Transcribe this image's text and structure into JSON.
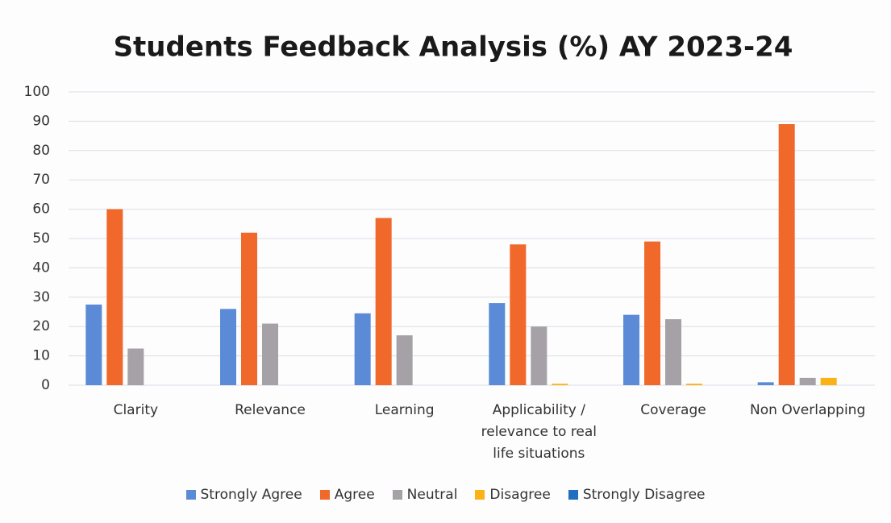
{
  "chart_data": {
    "type": "bar",
    "title": "Students Feedback Analysis (%) AY 2023-24",
    "categories": [
      "Clarity",
      "Relevance",
      "Learning",
      "Applicability / relevance to real life situations",
      "Coverage",
      "Non Overlapping"
    ],
    "series": [
      {
        "name": "Strongly Agree",
        "color": "#5b8bd6",
        "values": [
          27.5,
          26,
          24.5,
          28,
          24,
          1
        ]
      },
      {
        "name": "Agree",
        "color": "#f0682a",
        "values": [
          60,
          52,
          57,
          48,
          49,
          89
        ]
      },
      {
        "name": "Neutral",
        "color": "#a6a1a6",
        "values": [
          12.5,
          21,
          17,
          20,
          22.5,
          2.5
        ]
      },
      {
        "name": "Disagree",
        "color": "#fbb216",
        "values": [
          0,
          0,
          0,
          0.5,
          0.5,
          2.5
        ]
      },
      {
        "name": "Strongly Disagree",
        "color": "#1f6fc1",
        "values": [
          0,
          0,
          0,
          0,
          0,
          0
        ]
      }
    ],
    "ylim": [
      0,
      100
    ],
    "yticks": [
      0,
      10,
      20,
      30,
      40,
      50,
      60,
      70,
      80,
      90,
      100
    ],
    "grid": true
  }
}
